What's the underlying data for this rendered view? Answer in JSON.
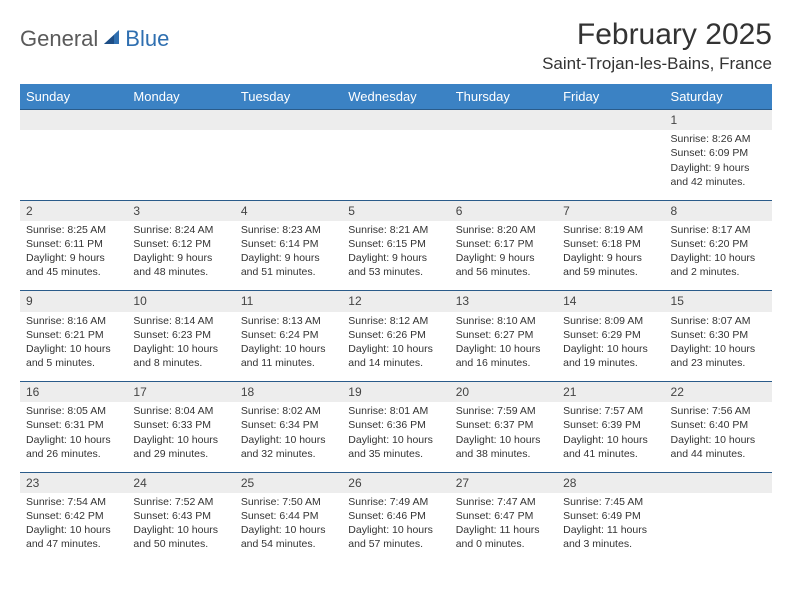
{
  "logo": {
    "part1": "General",
    "part2": "Blue"
  },
  "title": "February 2025",
  "location": "Saint-Trojan-les-Bains, France",
  "colors": {
    "header_bg": "#3b82c4",
    "header_text": "#ffffff",
    "daynum_bg": "#ededed",
    "border": "#2a5b8a",
    "text": "#333333",
    "logo_gray": "#5a5a5a",
    "logo_blue": "#2f6fb0"
  },
  "weekdays": [
    "Sunday",
    "Monday",
    "Tuesday",
    "Wednesday",
    "Thursday",
    "Friday",
    "Saturday"
  ],
  "weeks": [
    [
      null,
      null,
      null,
      null,
      null,
      null,
      {
        "n": "1",
        "sr": "Sunrise: 8:26 AM",
        "ss": "Sunset: 6:09 PM",
        "d1": "Daylight: 9 hours",
        "d2": "and 42 minutes."
      }
    ],
    [
      {
        "n": "2",
        "sr": "Sunrise: 8:25 AM",
        "ss": "Sunset: 6:11 PM",
        "d1": "Daylight: 9 hours",
        "d2": "and 45 minutes."
      },
      {
        "n": "3",
        "sr": "Sunrise: 8:24 AM",
        "ss": "Sunset: 6:12 PM",
        "d1": "Daylight: 9 hours",
        "d2": "and 48 minutes."
      },
      {
        "n": "4",
        "sr": "Sunrise: 8:23 AM",
        "ss": "Sunset: 6:14 PM",
        "d1": "Daylight: 9 hours",
        "d2": "and 51 minutes."
      },
      {
        "n": "5",
        "sr": "Sunrise: 8:21 AM",
        "ss": "Sunset: 6:15 PM",
        "d1": "Daylight: 9 hours",
        "d2": "and 53 minutes."
      },
      {
        "n": "6",
        "sr": "Sunrise: 8:20 AM",
        "ss": "Sunset: 6:17 PM",
        "d1": "Daylight: 9 hours",
        "d2": "and 56 minutes."
      },
      {
        "n": "7",
        "sr": "Sunrise: 8:19 AM",
        "ss": "Sunset: 6:18 PM",
        "d1": "Daylight: 9 hours",
        "d2": "and 59 minutes."
      },
      {
        "n": "8",
        "sr": "Sunrise: 8:17 AM",
        "ss": "Sunset: 6:20 PM",
        "d1": "Daylight: 10 hours",
        "d2": "and 2 minutes."
      }
    ],
    [
      {
        "n": "9",
        "sr": "Sunrise: 8:16 AM",
        "ss": "Sunset: 6:21 PM",
        "d1": "Daylight: 10 hours",
        "d2": "and 5 minutes."
      },
      {
        "n": "10",
        "sr": "Sunrise: 8:14 AM",
        "ss": "Sunset: 6:23 PM",
        "d1": "Daylight: 10 hours",
        "d2": "and 8 minutes."
      },
      {
        "n": "11",
        "sr": "Sunrise: 8:13 AM",
        "ss": "Sunset: 6:24 PM",
        "d1": "Daylight: 10 hours",
        "d2": "and 11 minutes."
      },
      {
        "n": "12",
        "sr": "Sunrise: 8:12 AM",
        "ss": "Sunset: 6:26 PM",
        "d1": "Daylight: 10 hours",
        "d2": "and 14 minutes."
      },
      {
        "n": "13",
        "sr": "Sunrise: 8:10 AM",
        "ss": "Sunset: 6:27 PM",
        "d1": "Daylight: 10 hours",
        "d2": "and 16 minutes."
      },
      {
        "n": "14",
        "sr": "Sunrise: 8:09 AM",
        "ss": "Sunset: 6:29 PM",
        "d1": "Daylight: 10 hours",
        "d2": "and 19 minutes."
      },
      {
        "n": "15",
        "sr": "Sunrise: 8:07 AM",
        "ss": "Sunset: 6:30 PM",
        "d1": "Daylight: 10 hours",
        "d2": "and 23 minutes."
      }
    ],
    [
      {
        "n": "16",
        "sr": "Sunrise: 8:05 AM",
        "ss": "Sunset: 6:31 PM",
        "d1": "Daylight: 10 hours",
        "d2": "and 26 minutes."
      },
      {
        "n": "17",
        "sr": "Sunrise: 8:04 AM",
        "ss": "Sunset: 6:33 PM",
        "d1": "Daylight: 10 hours",
        "d2": "and 29 minutes."
      },
      {
        "n": "18",
        "sr": "Sunrise: 8:02 AM",
        "ss": "Sunset: 6:34 PM",
        "d1": "Daylight: 10 hours",
        "d2": "and 32 minutes."
      },
      {
        "n": "19",
        "sr": "Sunrise: 8:01 AM",
        "ss": "Sunset: 6:36 PM",
        "d1": "Daylight: 10 hours",
        "d2": "and 35 minutes."
      },
      {
        "n": "20",
        "sr": "Sunrise: 7:59 AM",
        "ss": "Sunset: 6:37 PM",
        "d1": "Daylight: 10 hours",
        "d2": "and 38 minutes."
      },
      {
        "n": "21",
        "sr": "Sunrise: 7:57 AM",
        "ss": "Sunset: 6:39 PM",
        "d1": "Daylight: 10 hours",
        "d2": "and 41 minutes."
      },
      {
        "n": "22",
        "sr": "Sunrise: 7:56 AM",
        "ss": "Sunset: 6:40 PM",
        "d1": "Daylight: 10 hours",
        "d2": "and 44 minutes."
      }
    ],
    [
      {
        "n": "23",
        "sr": "Sunrise: 7:54 AM",
        "ss": "Sunset: 6:42 PM",
        "d1": "Daylight: 10 hours",
        "d2": "and 47 minutes."
      },
      {
        "n": "24",
        "sr": "Sunrise: 7:52 AM",
        "ss": "Sunset: 6:43 PM",
        "d1": "Daylight: 10 hours",
        "d2": "and 50 minutes."
      },
      {
        "n": "25",
        "sr": "Sunrise: 7:50 AM",
        "ss": "Sunset: 6:44 PM",
        "d1": "Daylight: 10 hours",
        "d2": "and 54 minutes."
      },
      {
        "n": "26",
        "sr": "Sunrise: 7:49 AM",
        "ss": "Sunset: 6:46 PM",
        "d1": "Daylight: 10 hours",
        "d2": "and 57 minutes."
      },
      {
        "n": "27",
        "sr": "Sunrise: 7:47 AM",
        "ss": "Sunset: 6:47 PM",
        "d1": "Daylight: 11 hours",
        "d2": "and 0 minutes."
      },
      {
        "n": "28",
        "sr": "Sunrise: 7:45 AM",
        "ss": "Sunset: 6:49 PM",
        "d1": "Daylight: 11 hours",
        "d2": "and 3 minutes."
      },
      null
    ]
  ]
}
